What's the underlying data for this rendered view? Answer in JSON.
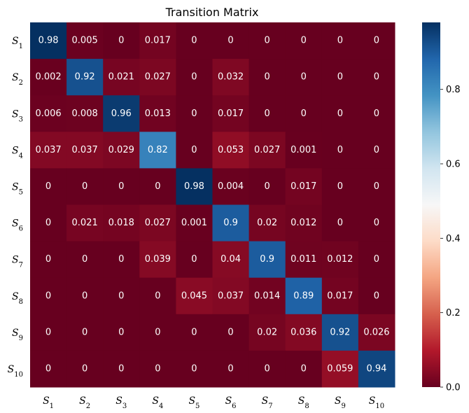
{
  "chart_data": {
    "type": "heatmap",
    "title": "Transition Matrix",
    "row_labels": [
      "S1",
      "S2",
      "S3",
      "S4",
      "S5",
      "S6",
      "S7",
      "S8",
      "S9",
      "S10"
    ],
    "col_labels": [
      "S1",
      "S2",
      "S3",
      "S4",
      "S5",
      "S6",
      "S7",
      "S8",
      "S9",
      "S10"
    ],
    "label_base": "S",
    "label_subscripts": [
      "1",
      "2",
      "3",
      "4",
      "5",
      "6",
      "7",
      "8",
      "9",
      "10"
    ],
    "values": [
      [
        0.98,
        0.005,
        0,
        0.017,
        0,
        0,
        0,
        0,
        0,
        0
      ],
      [
        0.002,
        0.92,
        0.021,
        0.027,
        0,
        0.032,
        0,
        0,
        0,
        0
      ],
      [
        0.006,
        0.008,
        0.96,
        0.013,
        0,
        0.017,
        0,
        0,
        0,
        0
      ],
      [
        0.037,
        0.037,
        0.029,
        0.82,
        0,
        0.053,
        0.027,
        0.001,
        0,
        0
      ],
      [
        0,
        0,
        0,
        0,
        0.98,
        0.004,
        0,
        0.017,
        0,
        0
      ],
      [
        0,
        0.021,
        0.018,
        0.027,
        0.001,
        0.9,
        0.02,
        0.012,
        0,
        0
      ],
      [
        0,
        0,
        0,
        0.039,
        0,
        0.04,
        0.9,
        0.011,
        0.012,
        0
      ],
      [
        0,
        0,
        0,
        0,
        0.045,
        0.037,
        0.014,
        0.89,
        0.017,
        0
      ],
      [
        0,
        0,
        0,
        0,
        0,
        0,
        0.02,
        0.036,
        0.92,
        0.026
      ],
      [
        0,
        0,
        0,
        0,
        0,
        0,
        0,
        0,
        0.059,
        0.94
      ]
    ],
    "colormap": "RdBu",
    "vmin": 0.0,
    "vmax": 0.98,
    "colorbar_ticks": [
      "0.0",
      "0.2",
      "0.4",
      "0.6",
      "0.8"
    ],
    "colorbar_tick_values": [
      0.0,
      0.2,
      0.4,
      0.6,
      0.8
    ]
  }
}
